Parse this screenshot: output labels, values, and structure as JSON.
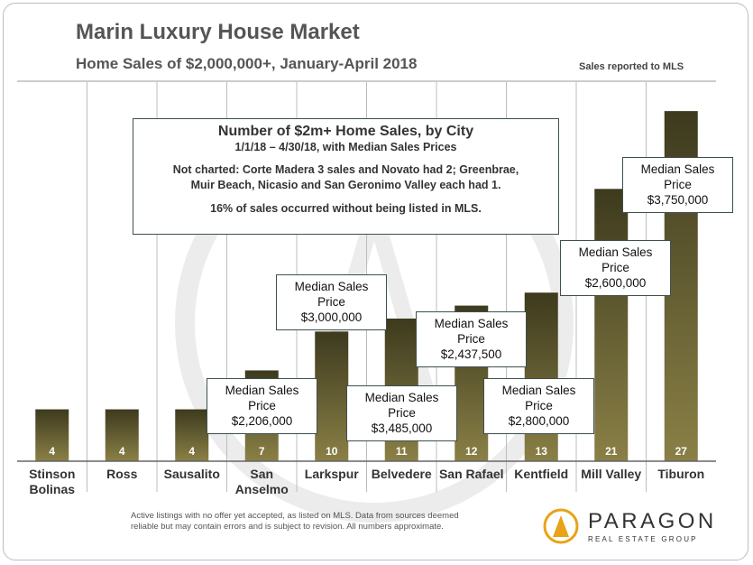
{
  "chart_data": {
    "type": "bar",
    "title": "Marin Luxury House Market",
    "subtitle": "Home Sales of $2,000,000+, January-April 2018",
    "note": "Sales reported to MLS",
    "ylim": [
      0,
      30
    ],
    "grid": false,
    "categories": [
      "Stinson Bolinas",
      "Ross",
      "Sausalito",
      "San Anselmo",
      "Larkspur",
      "Belvedere",
      "San Rafael",
      "Kentfield",
      "Mill Valley",
      "Tiburon"
    ],
    "category_lines": [
      [
        "Stinson",
        "Bolinas"
      ],
      [
        "Ross"
      ],
      [
        "Sausalito"
      ],
      [
        "San",
        "Anselmo"
      ],
      [
        "Larkspur"
      ],
      [
        "Belvedere"
      ],
      [
        "San Rafael"
      ],
      [
        "Kentfield"
      ],
      [
        "Mill Valley"
      ],
      [
        "Tiburon"
      ]
    ],
    "values": [
      4,
      4,
      4,
      7,
      10,
      11,
      12,
      13,
      21,
      27
    ],
    "bar_colors": [
      "#3d3a1e",
      "#8a8046"
    ],
    "info_box": {
      "heading": "Number of $2m+ Home Sales, by City",
      "subheading": "1/1/18 – 4/30/18, with Median Sales Prices",
      "not_charted": [
        "Not charted: Corte Madera 3 sales and Novato had 2; Greenbrae,",
        "Muir Beach, Nicasio and San Geronimo Valley each had 1."
      ],
      "unlisted": "16% of sales occurred without being listed in MLS."
    },
    "annotations": [
      {
        "city": "San Anselmo",
        "lines": [
          "Median Sales",
          "Price",
          "$2,206,000"
        ]
      },
      {
        "city": "Larkspur",
        "lines": [
          "Median Sales",
          "Price",
          "$3,000,000"
        ]
      },
      {
        "city": "Belvedere",
        "lines": [
          "Median Sales",
          "Price",
          "$3,485,000"
        ]
      },
      {
        "city": "San Rafael",
        "lines": [
          "Median Sales",
          "Price",
          "$2,437,500"
        ]
      },
      {
        "city": "Kentfield",
        "lines": [
          "Median Sales",
          "Price",
          "$2,800,000"
        ]
      },
      {
        "city": "Mill Valley",
        "lines": [
          "Median Sales",
          "Price",
          "$2,600,000"
        ]
      },
      {
        "city": "Tiburon",
        "lines": [
          "Median Sales",
          "Price",
          "$3,750,000"
        ]
      }
    ]
  },
  "footer": {
    "line1": "Active  listings with no offer yet accepted, as listed on MLS.  Data from  sources deemed",
    "line2": "reliable but may contain errors and is subject to revision. All numbers approximate."
  },
  "logo": {
    "word": "PARAGON",
    "tagline": "REAL ESTATE GROUP",
    "color": "#e8a317"
  }
}
